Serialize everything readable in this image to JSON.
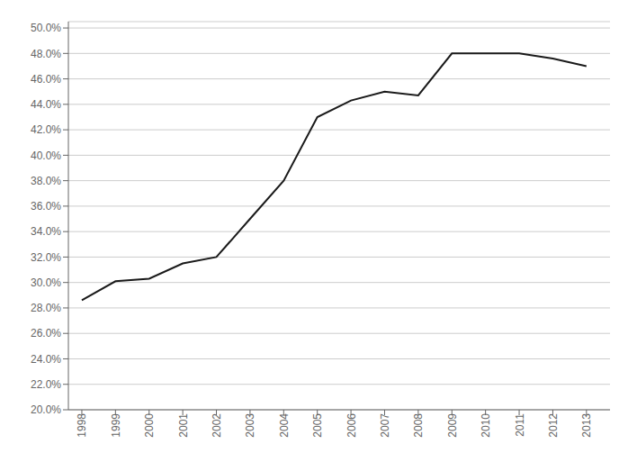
{
  "chart_data": {
    "type": "line",
    "x": [
      1998,
      1999,
      2000,
      2001,
      2002,
      2003,
      2004,
      2005,
      2006,
      2007,
      2008,
      2009,
      2010,
      2011,
      2012,
      2013
    ],
    "values": [
      0.286,
      0.301,
      0.303,
      0.315,
      0.32,
      0.35,
      0.38,
      0.43,
      0.443,
      0.45,
      0.447,
      0.48,
      0.48,
      0.48,
      0.476,
      0.47
    ],
    "color": "#1a1a1a",
    "xlim": [
      1997.6,
      2013.7
    ],
    "xticks": [
      1998,
      1999,
      2000,
      2001,
      2002,
      2003,
      2004,
      2005,
      2006,
      2007,
      2008,
      2009,
      2010,
      2011,
      2012,
      2013
    ],
    "ylim": [
      0.2,
      0.505
    ],
    "yticks": [
      {
        "value": 0.2,
        "label": "20.0%"
      },
      {
        "value": 0.22,
        "label": "22.0%"
      },
      {
        "value": 0.24,
        "label": "24.0%"
      },
      {
        "value": 0.26,
        "label": "26.0%"
      },
      {
        "value": 0.28,
        "label": "28.0%"
      },
      {
        "value": 0.3,
        "label": "30.0%"
      },
      {
        "value": 0.32,
        "label": "32.0%"
      },
      {
        "value": 0.34,
        "label": "34.0%"
      },
      {
        "value": 0.36,
        "label": "36.0%"
      },
      {
        "value": 0.38,
        "label": "38.0%"
      },
      {
        "value": 0.4,
        "label": "40.0%"
      },
      {
        "value": 0.42,
        "label": "42.0%"
      },
      {
        "value": 0.44,
        "label": "44.0%"
      },
      {
        "value": 0.46,
        "label": "46.0%"
      },
      {
        "value": 0.48,
        "label": "48.0%"
      },
      {
        "value": 0.5,
        "label": "50.0%"
      }
    ],
    "grid": true
  }
}
